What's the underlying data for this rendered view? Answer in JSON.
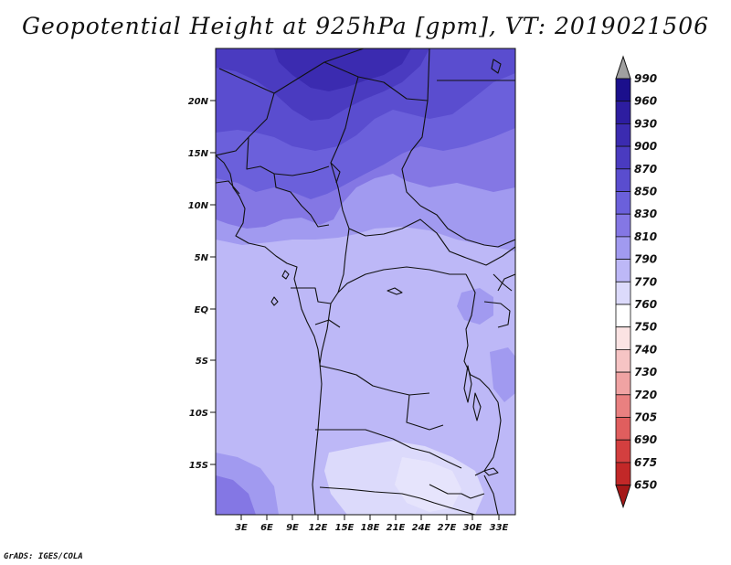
{
  "title": "Geopotential Height at 925hPa [gpm], VT: 2019021506",
  "credit": "GrADS: IGES/COLA",
  "map": {
    "variable": "Geopotential Height",
    "level": "925hPa",
    "units": "gpm",
    "valid_time": "2019021506",
    "lat_labels": [
      "20N",
      "15N",
      "10N",
      "5N",
      "EQ",
      "5S",
      "10S",
      "15S"
    ],
    "lon_labels": [
      "3E",
      "6E",
      "9E",
      "12E",
      "15E",
      "18E",
      "21E",
      "24E",
      "27E",
      "30E",
      "33E"
    ]
  },
  "colorbar": {
    "levels": [
      "990",
      "960",
      "930",
      "900",
      "870",
      "850",
      "830",
      "810",
      "790",
      "770",
      "760",
      "750",
      "740",
      "730",
      "720",
      "705",
      "690",
      "675",
      "650"
    ],
    "colors": [
      "#1b0f8c",
      "#2d1da0",
      "#3b2bb0",
      "#4a3bc0",
      "#5a4dcf",
      "#6b60db",
      "#8477e4",
      "#a19af0",
      "#bdb8f7",
      "#dcdafb",
      "#ffffff",
      "#fbe3e3",
      "#f6c4c4",
      "#f0a3a3",
      "#e98080",
      "#e05e5e",
      "#d33f3f",
      "#c22828",
      "#a51818"
    ]
  }
}
